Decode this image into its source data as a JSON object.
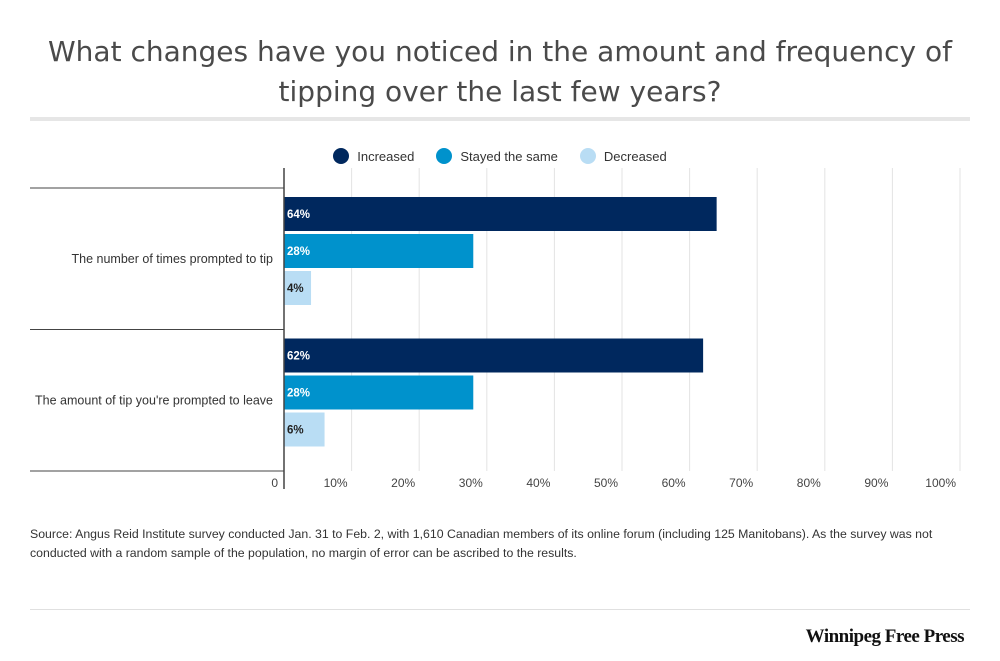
{
  "title": "What changes have you noticed in the amount and frequency of tipping over the last few years?",
  "legend": [
    {
      "label": "Increased",
      "color": "#00285e"
    },
    {
      "label": "Stayed the same",
      "color": "#0092cc"
    },
    {
      "label": "Decreased",
      "color": "#b9ddf4"
    }
  ],
  "chart_data": {
    "type": "bar",
    "orientation": "horizontal",
    "categories": [
      "The number of times prompted to tip",
      "The amount of tip you're prompted to leave"
    ],
    "series": [
      {
        "name": "Increased",
        "values": [
          64,
          62
        ],
        "labels": [
          "64%",
          "62%"
        ],
        "color": "#00285e"
      },
      {
        "name": "Stayed the same",
        "values": [
          28,
          28
        ],
        "labels": [
          "28%",
          "28%"
        ],
        "color": "#0092cc"
      },
      {
        "name": "Decreased",
        "values": [
          4,
          6
        ],
        "labels": [
          "4%",
          "6%"
        ],
        "color": "#b9ddf4"
      }
    ],
    "xlim": [
      0,
      100
    ],
    "xticks": [
      "0",
      "10%",
      "20%",
      "30%",
      "40%",
      "50%",
      "60%",
      "70%",
      "80%",
      "90%",
      "100%"
    ],
    "grid": true,
    "legend_position": "top-center"
  },
  "source": "Source: Angus Reid Institute survey conducted Jan. 31 to Feb. 2, with 1,610 Canadian members of its online forum (including 125 Manitobans). As the survey was not conducted with a random sample of the population, no margin of error can be ascribed to the results.",
  "brand": "Winnipeg Free Press"
}
